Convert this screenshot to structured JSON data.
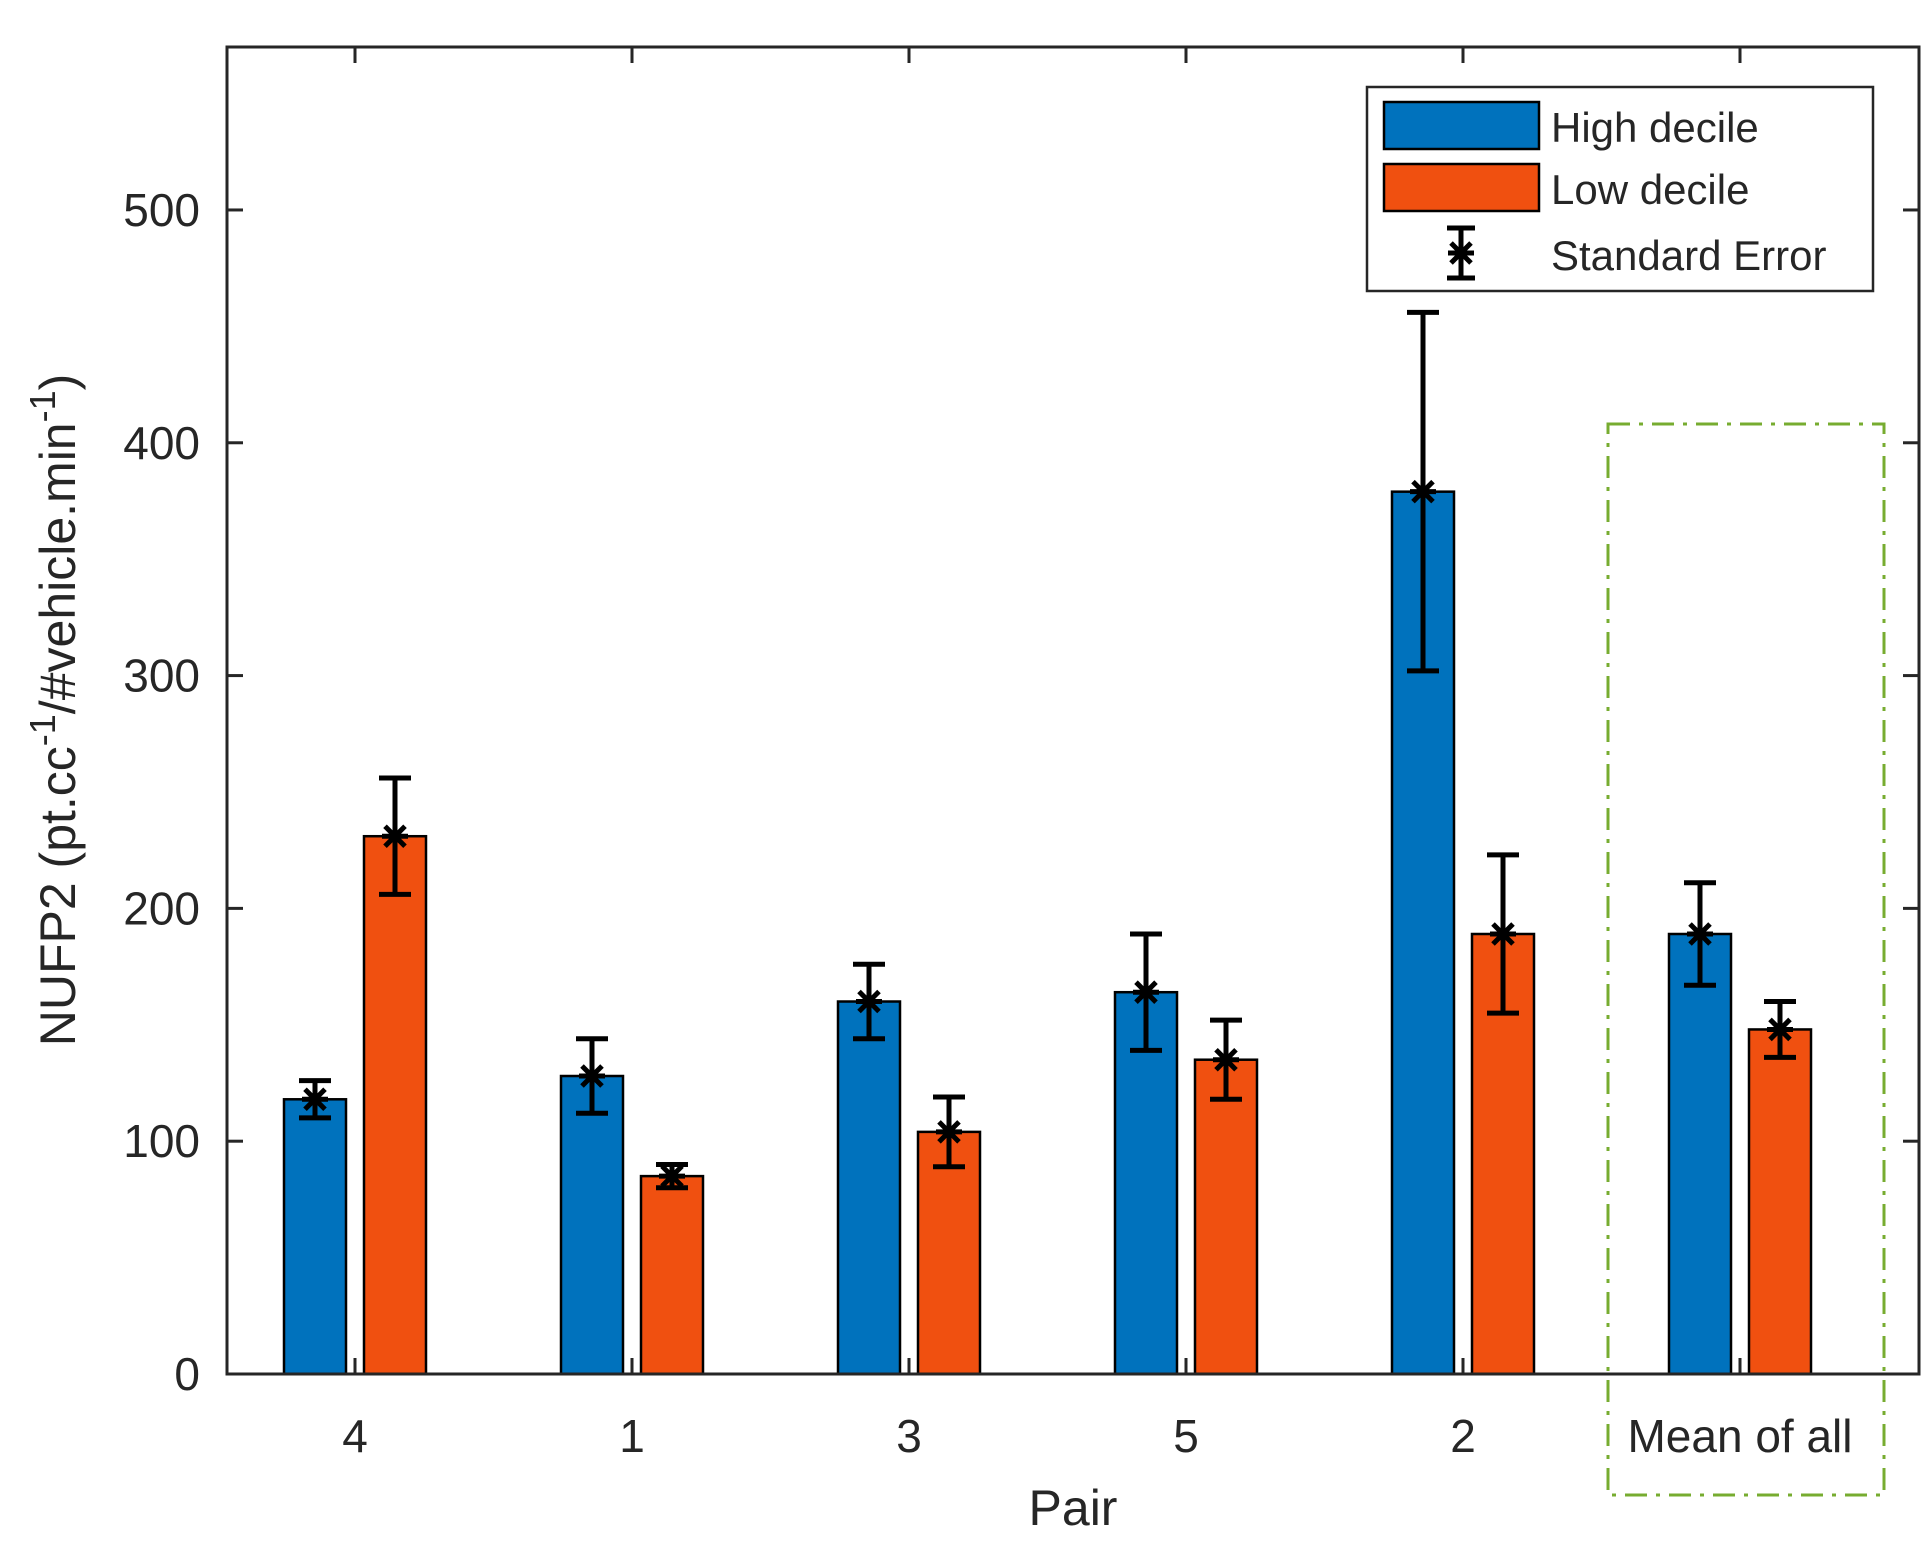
{
  "chart_data": {
    "type": "bar",
    "title": "",
    "xlabel": "Pair",
    "ylabel_main": "NUFP2 (pt.cc",
    "ylabel_sup1": "-1",
    "ylabel_mid": "/#vehicle.min",
    "ylabel_sup2": "-1",
    "ylabel_end": ")",
    "ylim": [
      0,
      570
    ],
    "yticks": [
      0,
      100,
      200,
      300,
      400,
      500
    ],
    "ytick_labels": [
      "0",
      "100",
      "200",
      "300",
      "400",
      "500"
    ],
    "categories": [
      "4",
      "1",
      "3",
      "5",
      "2",
      "Mean of all"
    ],
    "grid": false,
    "legend_position": "top-right",
    "series": [
      {
        "name": "High decile",
        "color": "#0072BD",
        "values": [
          118,
          128,
          160,
          164,
          379,
          189
        ],
        "error": [
          8,
          16,
          16,
          25,
          77,
          22
        ]
      },
      {
        "name": "Low decile",
        "color": "#F05010",
        "values": [
          231,
          85,
          104,
          135,
          189,
          148
        ],
        "error": [
          25,
          5,
          15,
          17,
          34,
          12
        ]
      }
    ],
    "error_legend_label": "Standard Error",
    "highlight_box_category": "Mean of all",
    "highlight_box_color": "#77AC30"
  }
}
